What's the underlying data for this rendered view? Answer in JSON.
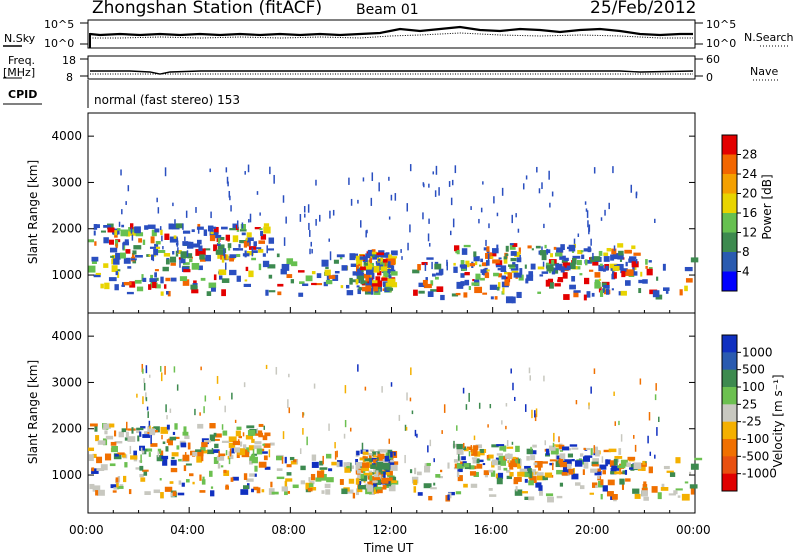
{
  "header": {
    "title": "Zhongshan Station (fitACF)",
    "beam": "Beam 01",
    "date": "25/Feb/2012"
  },
  "strips": {
    "nsky_label": "N.Sky",
    "nsky_ticks": [
      "10^5",
      "10^0"
    ],
    "nsearch_label": "N.Search",
    "nsearch_ticks": [
      "10^5",
      "10^0"
    ],
    "freq_label_1": "Freq.",
    "freq_label_2": "[MHz]",
    "freq_ticks": [
      "18",
      "8"
    ],
    "nave_label": "Nave",
    "nave_ticks": [
      "60",
      "0"
    ],
    "cpid_label": "CPID",
    "cpid_text": "normal (fast stereo) 153"
  },
  "chart_data": [
    {
      "type": "heatmap",
      "panel": "power",
      "ylabel": "Slant Range [km]",
      "xlabel": "",
      "y_ticks": [
        "1000",
        "2000",
        "3000",
        "4000"
      ],
      "ylim": [
        180,
        4500
      ],
      "colorbar_label": "Power [dB]",
      "colorbar_ticks": [
        "4",
        "8",
        "12",
        "16",
        "20",
        "24",
        "28"
      ],
      "colorbar_colors": [
        "#0000ff",
        "#2a5bb0",
        "#3d8a4f",
        "#66c050",
        "#e8d400",
        "#f4a000",
        "#f26600",
        "#e30000"
      ]
    },
    {
      "type": "heatmap",
      "panel": "velocity",
      "ylabel": "Slant Range [km]",
      "xlabel": "Time UT",
      "y_ticks": [
        "1000",
        "2000",
        "3000",
        "4000"
      ],
      "ylim": [
        180,
        4500
      ],
      "x_ticks": [
        "00:00",
        "04:00",
        "08:00",
        "12:00",
        "16:00",
        "20:00",
        "00:00"
      ],
      "colorbar_label": "Velocity [m s⁻¹]",
      "colorbar_ticks": [
        "1000",
        "500",
        "100",
        "25",
        "-25",
        "-100",
        "-500",
        "-1000"
      ],
      "colorbar_colors": [
        "#1030c0",
        "#2a5bb0",
        "#3d8a4f",
        "#6cc050",
        "#c8c8c0",
        "#f4b000",
        "#f07000",
        "#e85010",
        "#e00000"
      ]
    }
  ]
}
